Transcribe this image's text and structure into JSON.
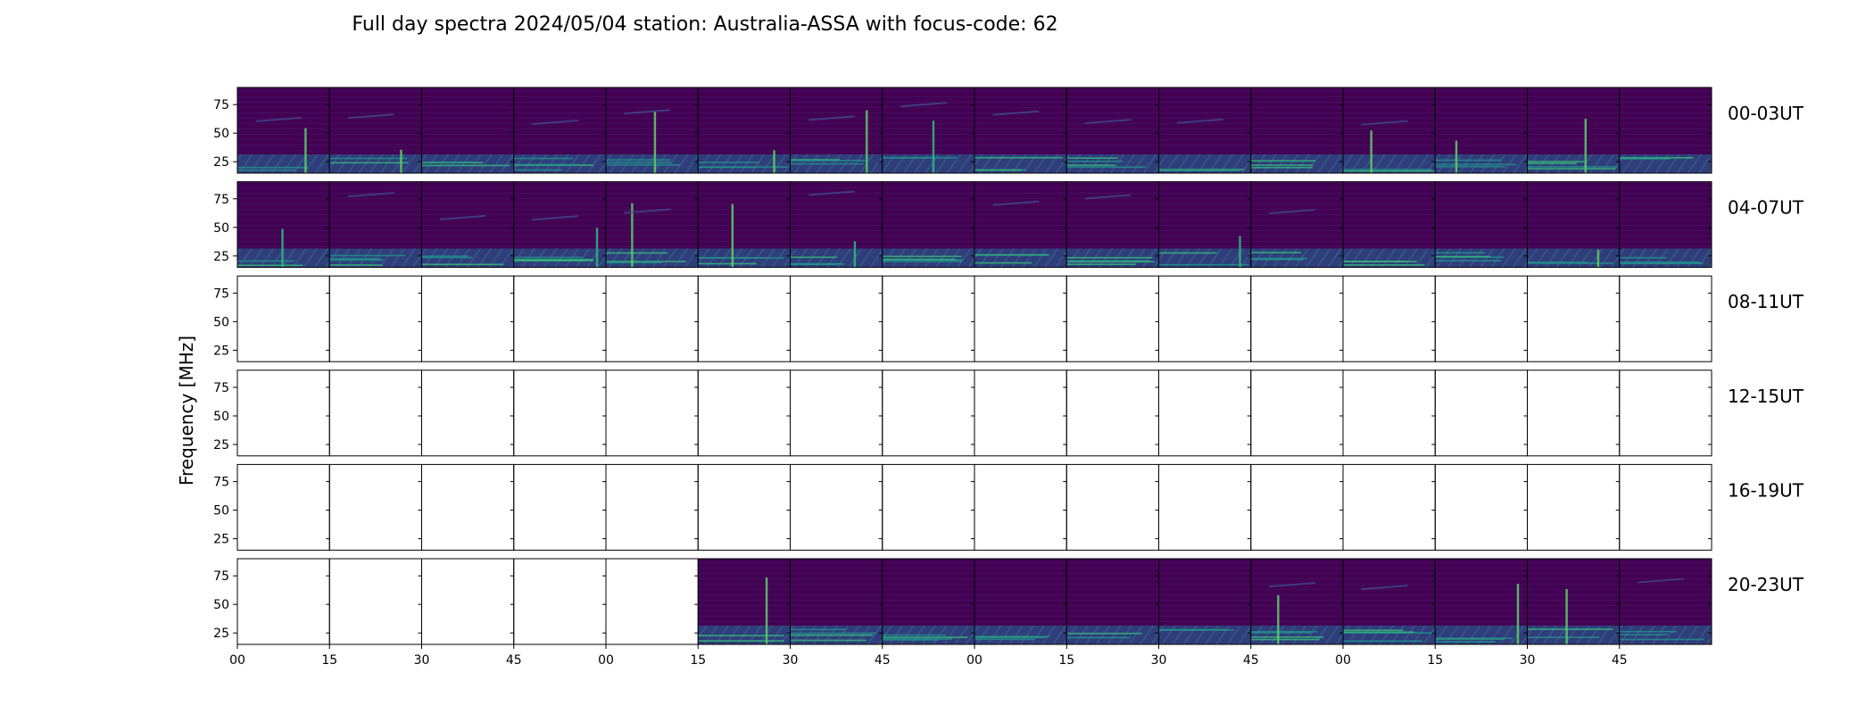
{
  "chart_data": {
    "type": "heatmap",
    "title": "Full day spectra 2024/05/04 station: Australia-ASSA with focus-code: 62",
    "ylabel": "Frequency [MHz]",
    "xlabel": "",
    "y_ticks": [
      "75",
      "50",
      "25"
    ],
    "x_ticks": [
      "00",
      "15",
      "30",
      "45",
      "00",
      "15",
      "30",
      "45",
      "00",
      "15",
      "30",
      "45",
      "00",
      "15",
      "30",
      "45"
    ],
    "row_labels": [
      "00-03UT",
      "04-07UT",
      "08-11UT",
      "12-15UT",
      "16-19UT",
      "20-23UT"
    ],
    "y_range_mhz": [
      15,
      90
    ],
    "panels_per_row": 16,
    "panel_minutes": 15,
    "colormap": [
      "#440154",
      "#3b528b",
      "#21918c",
      "#5ec962",
      "#fde725"
    ],
    "availability": [
      [
        1,
        1,
        1,
        1,
        1,
        1,
        1,
        1,
        1,
        1,
        1,
        1,
        1,
        1,
        1,
        1
      ],
      [
        1,
        1,
        1,
        1,
        1,
        1,
        1,
        1,
        1,
        1,
        1,
        1,
        1,
        1,
        1,
        1
      ],
      [
        0,
        0,
        0,
        0,
        0,
        0,
        0,
        0,
        0,
        0,
        0,
        0,
        0,
        0,
        0,
        0
      ],
      [
        0,
        0,
        0,
        0,
        0,
        0,
        0,
        0,
        0,
        0,
        0,
        0,
        0,
        0,
        0,
        0
      ],
      [
        0,
        0,
        0,
        0,
        0,
        0,
        0,
        0,
        0,
        0,
        0,
        0,
        0,
        0,
        0,
        0
      ],
      [
        0,
        0,
        0,
        0,
        0,
        1,
        1,
        1,
        1,
        1,
        1,
        1,
        1,
        1,
        1,
        1
      ]
    ]
  }
}
